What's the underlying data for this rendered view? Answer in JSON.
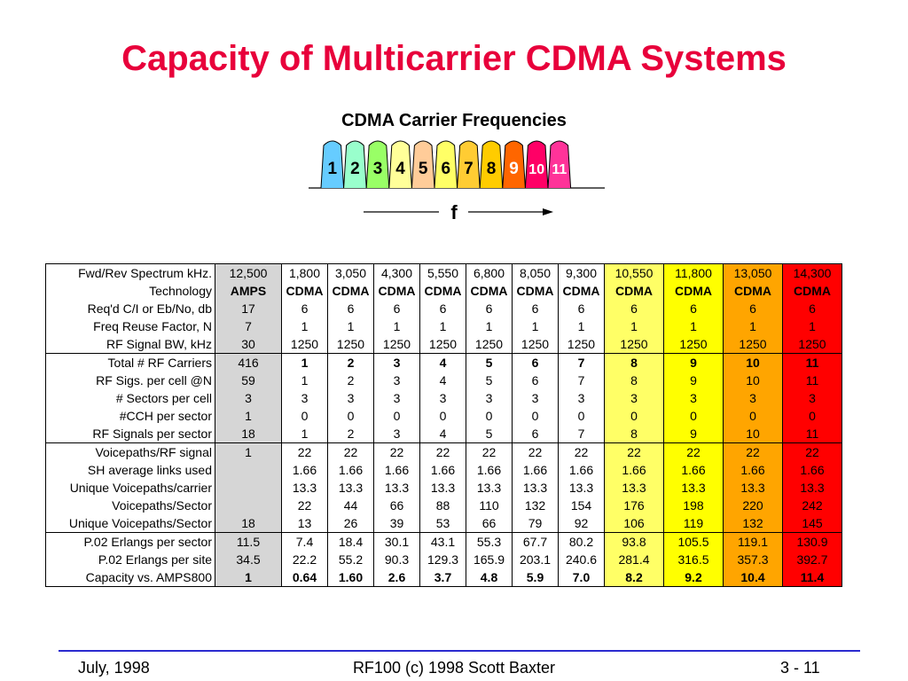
{
  "title": "Capacity of Multicarrier CDMA Systems",
  "subtitle": "CDMA Carrier Frequencies",
  "carriers": [
    {
      "label": "1",
      "color": "#66ccff",
      "text_color": "#000000"
    },
    {
      "label": "2",
      "color": "#99ffcc",
      "text_color": "#000000"
    },
    {
      "label": "3",
      "color": "#99ff66",
      "text_color": "#000000"
    },
    {
      "label": "4",
      "color": "#ffff99",
      "text_color": "#000000"
    },
    {
      "label": "5",
      "color": "#ffcc99",
      "text_color": "#000000"
    },
    {
      "label": "6",
      "color": "#ffff66",
      "text_color": "#000000"
    },
    {
      "label": "7",
      "color": "#ffcc33",
      "text_color": "#000000"
    },
    {
      "label": "8",
      "color": "#ffcc00",
      "text_color": "#000000"
    },
    {
      "label": "9",
      "color": "#ff6600",
      "text_color": "#ffffff"
    },
    {
      "label": "10",
      "color": "#ff0066",
      "text_color": "#ffffff"
    },
    {
      "label": "11",
      "color": "#ff3399",
      "text_color": "#ffffff"
    }
  ],
  "freq_axis_label": "f",
  "column_colors": [
    "#d6d6d6",
    "#ffffff",
    "#ffffff",
    "#ffffff",
    "#ffffff",
    "#ffffff",
    "#ffffff",
    "#ffffff",
    "#ffff66",
    "#ffff00",
    "#ffa500",
    "#ff0000"
  ],
  "table": {
    "rows": [
      {
        "label": "Fwd/Rev Spectrum kHz.",
        "values": [
          "12,500",
          "1,800",
          "3,050",
          "4,300",
          "5,550",
          "6,800",
          "8,050",
          "9,300",
          "10,550",
          "11,800",
          "13,050",
          "14,300"
        ],
        "bold": false,
        "group_start": true
      },
      {
        "label": "Technology",
        "values": [
          "AMPS",
          "CDMA",
          "CDMA",
          "CDMA",
          "CDMA",
          "CDMA",
          "CDMA",
          "CDMA",
          "CDMA",
          "CDMA",
          "CDMA",
          "CDMA"
        ],
        "bold": true
      },
      {
        "label": "Req'd C/I or Eb/No, db",
        "values": [
          "17",
          "6",
          "6",
          "6",
          "6",
          "6",
          "6",
          "6",
          "6",
          "6",
          "6",
          "6"
        ]
      },
      {
        "label": "Freq Reuse Factor, N",
        "values": [
          "7",
          "1",
          "1",
          "1",
          "1",
          "1",
          "1",
          "1",
          "1",
          "1",
          "1",
          "1"
        ]
      },
      {
        "label": "RF Signal BW, kHz",
        "values": [
          "30",
          "1250",
          "1250",
          "1250",
          "1250",
          "1250",
          "1250",
          "1250",
          "1250",
          "1250",
          "1250",
          "1250"
        ],
        "group_end": true
      },
      {
        "label": "Total # RF Carriers",
        "values": [
          "416",
          "1",
          "2",
          "3",
          "4",
          "5",
          "6",
          "7",
          "8",
          "9",
          "10",
          "11"
        ],
        "bold_cdma": true,
        "group_start": true
      },
      {
        "label": "RF Sigs. per cell @N",
        "values": [
          "59",
          "1",
          "2",
          "3",
          "4",
          "5",
          "6",
          "7",
          "8",
          "9",
          "10",
          "11"
        ]
      },
      {
        "label": "# Sectors per cell",
        "values": [
          "3",
          "3",
          "3",
          "3",
          "3",
          "3",
          "3",
          "3",
          "3",
          "3",
          "3",
          "3"
        ]
      },
      {
        "label": "#CCH per sector",
        "values": [
          "1",
          "0",
          "0",
          "0",
          "0",
          "0",
          "0",
          "0",
          "0",
          "0",
          "0",
          "0"
        ]
      },
      {
        "label": "RF Signals per sector",
        "values": [
          "18",
          "1",
          "2",
          "3",
          "4",
          "5",
          "6",
          "7",
          "8",
          "9",
          "10",
          "11"
        ],
        "group_end": true
      },
      {
        "label": "Voicepaths/RF signal",
        "values": [
          "1",
          "22",
          "22",
          "22",
          "22",
          "22",
          "22",
          "22",
          "22",
          "22",
          "22",
          "22"
        ],
        "group_start": true
      },
      {
        "label": "SH average links used",
        "values": [
          "",
          "1.66",
          "1.66",
          "1.66",
          "1.66",
          "1.66",
          "1.66",
          "1.66",
          "1.66",
          "1.66",
          "1.66",
          "1.66"
        ]
      },
      {
        "label": "Unique Voicepaths/carrier",
        "values": [
          "",
          "13.3",
          "13.3",
          "13.3",
          "13.3",
          "13.3",
          "13.3",
          "13.3",
          "13.3",
          "13.3",
          "13.3",
          "13.3"
        ]
      },
      {
        "label": "Voicepaths/Sector",
        "values": [
          "",
          "22",
          "44",
          "66",
          "88",
          "110",
          "132",
          "154",
          "176",
          "198",
          "220",
          "242"
        ]
      },
      {
        "label": "Unique Voicepaths/Sector",
        "values": [
          "18",
          "13",
          "26",
          "39",
          "53",
          "66",
          "79",
          "92",
          "106",
          "119",
          "132",
          "145"
        ],
        "group_end": true
      },
      {
        "label": "P.02 Erlangs per sector",
        "values": [
          "11.5",
          "7.4",
          "18.4",
          "30.1",
          "43.1",
          "55.3",
          "67.7",
          "80.2",
          "93.8",
          "105.5",
          "119.1",
          "130.9"
        ],
        "group_start": true
      },
      {
        "label": "P.02 Erlangs per site",
        "values": [
          "34.5",
          "22.2",
          "55.2",
          "90.3",
          "129.3",
          "165.9",
          "203.1",
          "240.6",
          "281.4",
          "316.5",
          "357.3",
          "392.7"
        ]
      },
      {
        "label": "Capacity vs. AMPS800",
        "values": [
          "1",
          "0.64",
          "1.60",
          "2.6",
          "3.7",
          "4.8",
          "5.9",
          "7.0",
          "8.2",
          "9.2",
          "10.4",
          "11.4"
        ],
        "bold": true,
        "group_end": true
      }
    ]
  },
  "footer": {
    "left": "July, 1998",
    "center": "RF100 (c) 1998 Scott Baxter",
    "right": "3 - 11"
  }
}
